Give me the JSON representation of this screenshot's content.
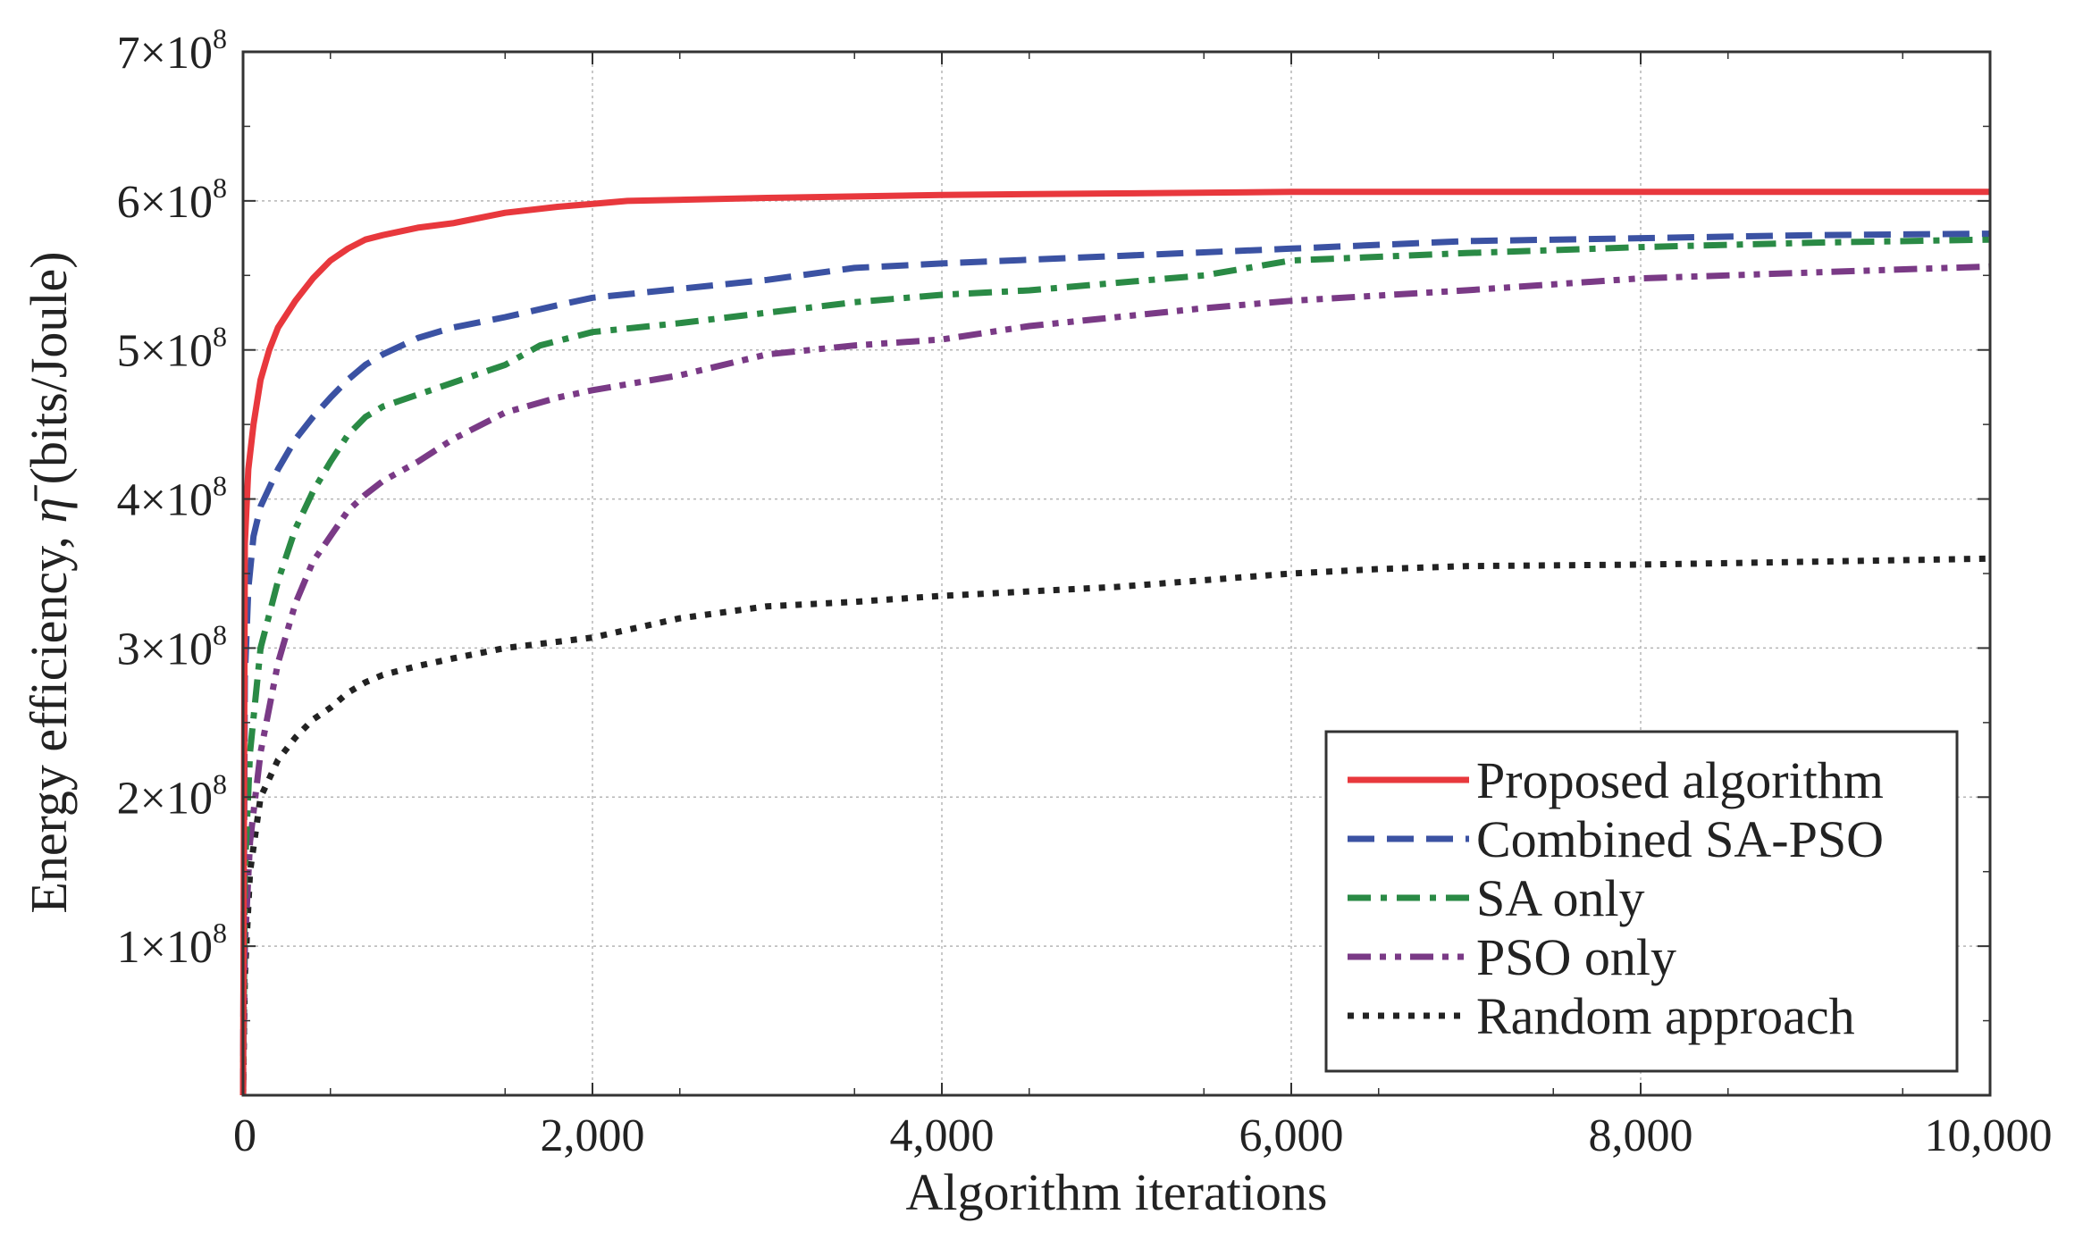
{
  "chart_data": {
    "type": "line",
    "title": "",
    "xlabel": "Algorithm iterations",
    "ylabel_prefix": "Energy efficiency, ",
    "ylabel_symbol": "η̄",
    "ylabel_suffix": " (bits/Joule)",
    "xlim": [
      0,
      10000
    ],
    "ylim": [
      0,
      700000000
    ],
    "grid": true,
    "legend_position": "bottom-right",
    "x_ticks": [
      {
        "value": 0,
        "label": "0"
      },
      {
        "value": 2000,
        "label": "2,000"
      },
      {
        "value": 4000,
        "label": "4,000"
      },
      {
        "value": 6000,
        "label": "6,000"
      },
      {
        "value": 8000,
        "label": "8,000"
      },
      {
        "value": 10000,
        "label": "10,000"
      }
    ],
    "y_ticks": [
      {
        "value": 100000000,
        "mantissa": "1×10",
        "exp": "8"
      },
      {
        "value": 200000000,
        "mantissa": "2×10",
        "exp": "8"
      },
      {
        "value": 300000000,
        "mantissa": "3×10",
        "exp": "8"
      },
      {
        "value": 400000000,
        "mantissa": "4×10",
        "exp": "8"
      },
      {
        "value": 500000000,
        "mantissa": "5×10",
        "exp": "8"
      },
      {
        "value": 600000000,
        "mantissa": "6×10",
        "exp": "8"
      },
      {
        "value": 700000000,
        "mantissa": "7×10",
        "exp": "8"
      }
    ],
    "series": [
      {
        "name": "Proposed algorithm",
        "color": "#e8383d",
        "style": "solid",
        "x": [
          0,
          10,
          30,
          60,
          100,
          150,
          200,
          300,
          400,
          500,
          600,
          700,
          800,
          1000,
          1200,
          1500,
          1800,
          2000,
          2200,
          3000,
          4000,
          5000,
          6000,
          7000,
          8000,
          9000,
          10000
        ],
        "values": [
          0,
          370000000,
          420000000,
          450000000,
          480000000,
          500000000,
          515000000,
          533000000,
          548000000,
          560000000,
          568000000,
          574000000,
          577000000,
          582000000,
          585000000,
          592000000,
          596000000,
          598000000,
          600000000,
          602000000,
          604000000,
          605000000,
          606000000,
          606000000,
          606000000,
          606000000,
          606000000
        ]
      },
      {
        "name": "Combined SA-PSO",
        "color": "#3b52a3",
        "style": "dashed",
        "x": [
          0,
          10,
          30,
          60,
          100,
          200,
          300,
          400,
          500,
          600,
          700,
          800,
          1000,
          1200,
          1500,
          1800,
          2000,
          2500,
          3000,
          3500,
          4000,
          5000,
          6000,
          7000,
          8000,
          9000,
          10000
        ],
        "values": [
          0,
          280000000,
          340000000,
          375000000,
          395000000,
          420000000,
          440000000,
          455000000,
          468000000,
          480000000,
          490000000,
          497000000,
          508000000,
          515000000,
          522000000,
          530000000,
          535000000,
          541000000,
          547000000,
          555000000,
          558000000,
          563000000,
          568000000,
          573000000,
          575000000,
          577000000,
          578000000
        ]
      },
      {
        "name": "SA only",
        "color": "#2a8a45",
        "style": "dashdot",
        "x": [
          0,
          10,
          40,
          100,
          200,
          300,
          400,
          500,
          600,
          700,
          800,
          1000,
          1200,
          1500,
          1700,
          2000,
          2500,
          3000,
          3500,
          4000,
          4500,
          5000,
          5500,
          6000,
          7000,
          8000,
          9000,
          10000
        ],
        "values": [
          0,
          150000000,
          230000000,
          300000000,
          345000000,
          380000000,
          405000000,
          425000000,
          443000000,
          455000000,
          462000000,
          470000000,
          478000000,
          490000000,
          503000000,
          512000000,
          518000000,
          525000000,
          532000000,
          537000000,
          540000000,
          545000000,
          550000000,
          560000000,
          565000000,
          569000000,
          572000000,
          574000000
        ]
      },
      {
        "name": "PSO only",
        "color": "#7a3a86",
        "style": "dashdotdot",
        "x": [
          0,
          10,
          40,
          100,
          200,
          300,
          400,
          500,
          600,
          700,
          800,
          1000,
          1200,
          1500,
          1800,
          2000,
          2500,
          3000,
          3500,
          4000,
          4500,
          5000,
          5500,
          6000,
          7000,
          8000,
          9000,
          10000
        ],
        "values": [
          0,
          100000000,
          170000000,
          230000000,
          290000000,
          330000000,
          358000000,
          375000000,
          392000000,
          403000000,
          412000000,
          425000000,
          440000000,
          458000000,
          468000000,
          473000000,
          483000000,
          497000000,
          503000000,
          507000000,
          516000000,
          522000000,
          528000000,
          533000000,
          540000000,
          548000000,
          552000000,
          556000000
        ]
      },
      {
        "name": "Random approach",
        "color": "#222222",
        "style": "dotted",
        "x": [
          0,
          10,
          40,
          100,
          200,
          300,
          400,
          500,
          600,
          700,
          800,
          1000,
          1200,
          1500,
          2000,
          2500,
          3000,
          3500,
          4000,
          5000,
          6000,
          6500,
          7000,
          8000,
          9000,
          10000
        ],
        "values": [
          0,
          80000000,
          150000000,
          200000000,
          225000000,
          240000000,
          252000000,
          260000000,
          270000000,
          277000000,
          282000000,
          288000000,
          293000000,
          300000000,
          307000000,
          320000000,
          328000000,
          331000000,
          335000000,
          341000000,
          350000000,
          353000000,
          355000000,
          356000000,
          358000000,
          360000000
        ]
      }
    ]
  }
}
